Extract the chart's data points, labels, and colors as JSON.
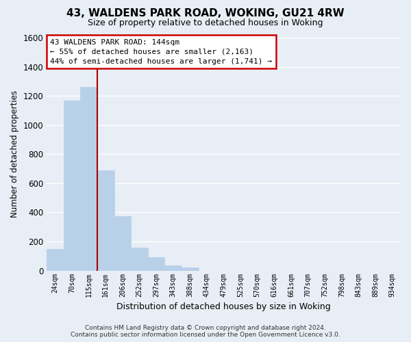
{
  "title": "43, WALDENS PARK ROAD, WOKING, GU21 4RW",
  "subtitle": "Size of property relative to detached houses in Woking",
  "xlabel": "Distribution of detached houses by size in Woking",
  "ylabel": "Number of detached properties",
  "bar_labels": [
    "24sqm",
    "70sqm",
    "115sqm",
    "161sqm",
    "206sqm",
    "252sqm",
    "297sqm",
    "343sqm",
    "388sqm",
    "434sqm",
    "479sqm",
    "525sqm",
    "570sqm",
    "616sqm",
    "661sqm",
    "707sqm",
    "752sqm",
    "798sqm",
    "843sqm",
    "889sqm",
    "934sqm"
  ],
  "bar_values": [
    150,
    1170,
    1260,
    690,
    375,
    160,
    90,
    35,
    20,
    0,
    0,
    0,
    0,
    0,
    0,
    0,
    0,
    0,
    0,
    0,
    0
  ],
  "bar_color": "#b8d0e8",
  "highlight_vline_x": 2.5,
  "ylim": [
    0,
    1600
  ],
  "yticks": [
    0,
    200,
    400,
    600,
    800,
    1000,
    1200,
    1400,
    1600
  ],
  "annotation_title": "43 WALDENS PARK ROAD: 144sqm",
  "annotation_line1": "← 55% of detached houses are smaller (2,163)",
  "annotation_line2": "44% of semi-detached houses are larger (1,741) →",
  "annotation_box_facecolor": "#ffffff",
  "annotation_box_edgecolor": "#cc0000",
  "vline_color": "#aa0000",
  "footer_line1": "Contains HM Land Registry data © Crown copyright and database right 2024.",
  "footer_line2": "Contains public sector information licensed under the Open Government Licence v3.0.",
  "bg_color": "#e8eef5",
  "plot_bg_color": "#e8eef5",
  "grid_color": "#ffffff",
  "title_fontsize": 11,
  "subtitle_fontsize": 9
}
